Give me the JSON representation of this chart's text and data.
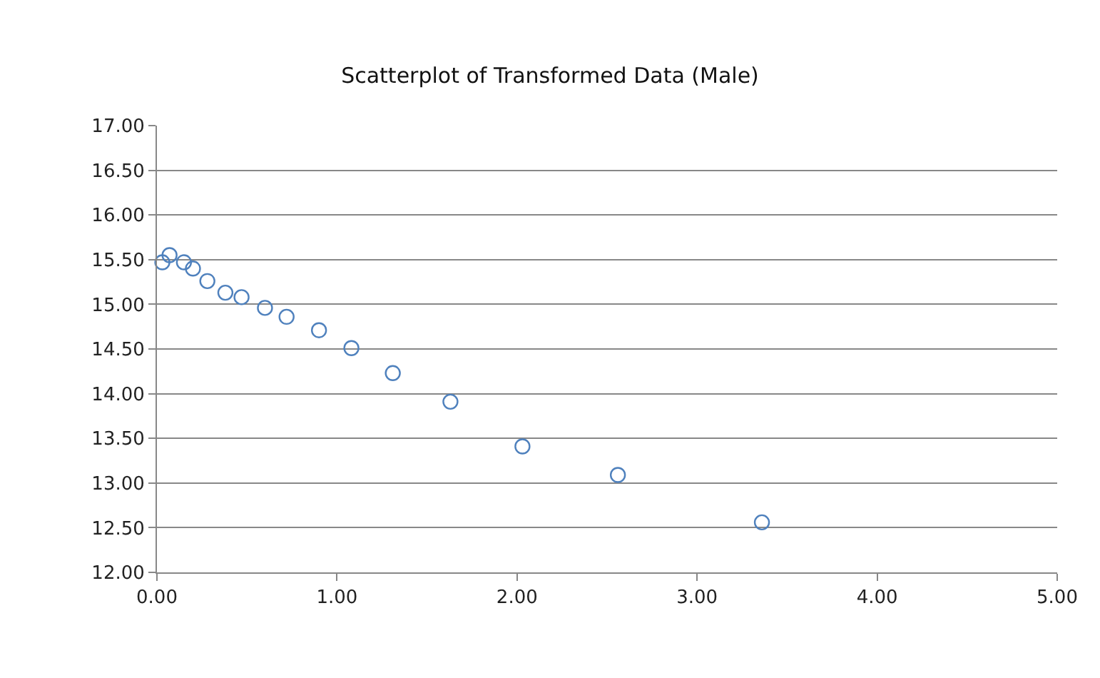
{
  "chart_data": {
    "type": "scatter",
    "title": "Scatterplot of Transformed Data (Male)",
    "x": [
      0.03,
      0.07,
      0.15,
      0.2,
      0.28,
      0.38,
      0.47,
      0.6,
      0.72,
      0.9,
      1.08,
      1.31,
      1.63,
      2.03,
      2.56,
      3.36
    ],
    "series": [
      {
        "color": "#4f81bd",
        "values": [
          15.47,
          15.55,
          15.47,
          15.4,
          15.26,
          15.13,
          15.08,
          14.96,
          14.86,
          14.71,
          14.51,
          14.23,
          13.91,
          13.41,
          13.09,
          12.56
        ]
      }
    ],
    "xlim": [
      0,
      5
    ],
    "xticks": [
      {
        "value": 0,
        "label": "0.00"
      },
      {
        "value": 1,
        "label": "1.00"
      },
      {
        "value": 2,
        "label": "2.00"
      },
      {
        "value": 3,
        "label": "3.00"
      },
      {
        "value": 4,
        "label": "4.00"
      },
      {
        "value": 5,
        "label": "5.00"
      }
    ],
    "ylim": [
      12,
      17
    ],
    "yticks": [
      {
        "value": 12,
        "label": "12.00"
      },
      {
        "value": 12.5,
        "label": "12.50"
      },
      {
        "value": 13,
        "label": "13.00"
      },
      {
        "value": 13.5,
        "label": "13.50"
      },
      {
        "value": 14,
        "label": "14.00"
      },
      {
        "value": 14.5,
        "label": "14.50"
      },
      {
        "value": 15,
        "label": "15.00"
      },
      {
        "value": 15.5,
        "label": "15.50"
      },
      {
        "value": 16,
        "label": "16.00"
      },
      {
        "value": 16.5,
        "label": "16.50"
      },
      {
        "value": 17,
        "label": "17.00"
      }
    ],
    "grid": "y",
    "marker": "circle"
  }
}
